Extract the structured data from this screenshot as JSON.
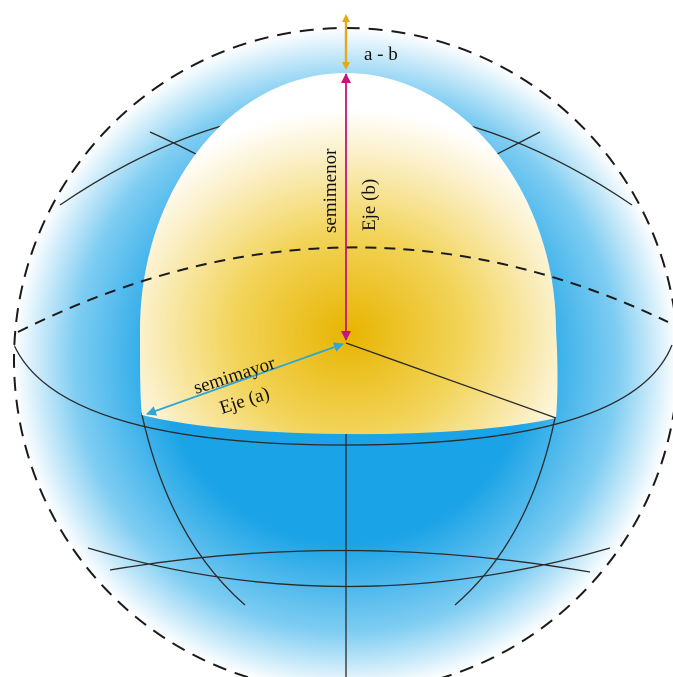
{
  "labels": {
    "difference": "a - b",
    "minor_line1": "semimenor",
    "minor_line2": "Eje (b)",
    "major_line1": "semimayor",
    "major_line2": "Eje (a)"
  },
  "colors": {
    "sphere_blue": "#1a9ee0",
    "ellipsoid_yellow": "#e8b800",
    "arrow_difference": "#e6a817",
    "arrow_minor": "#c4157a",
    "arrow_major": "#2fa6d4",
    "lines": "#222222"
  }
}
